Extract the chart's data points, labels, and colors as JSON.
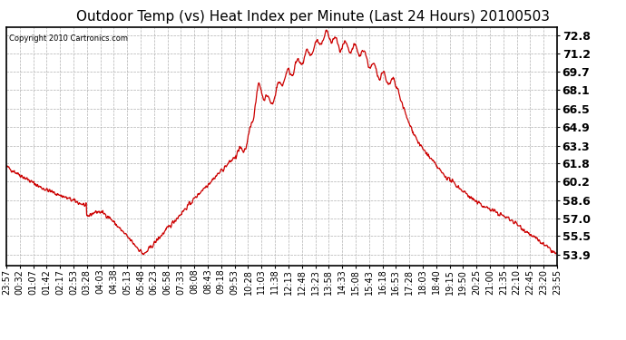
{
  "title": "Outdoor Temp (vs) Heat Index per Minute (Last 24 Hours) 20100503",
  "copyright": "Copyright 2010 Cartronics.com",
  "line_color": "#cc0000",
  "bg_color": "#ffffff",
  "grid_color": "#b0b0b0",
  "yticks": [
    53.9,
    55.5,
    57.0,
    58.6,
    60.2,
    61.8,
    63.3,
    64.9,
    66.5,
    68.1,
    69.7,
    71.2,
    72.8
  ],
  "ymin": 53.0,
  "ymax": 73.5,
  "x_labels": [
    "23:57",
    "00:32",
    "01:07",
    "01:42",
    "02:17",
    "02:53",
    "03:28",
    "04:03",
    "04:38",
    "05:13",
    "05:48",
    "06:23",
    "06:58",
    "07:33",
    "08:08",
    "08:43",
    "09:18",
    "09:53",
    "10:28",
    "11:03",
    "11:38",
    "12:13",
    "12:48",
    "13:23",
    "13:58",
    "14:33",
    "15:08",
    "15:43",
    "16:18",
    "16:53",
    "17:28",
    "18:03",
    "18:40",
    "19:15",
    "19:50",
    "20:25",
    "21:00",
    "21:35",
    "22:10",
    "22:45",
    "23:20",
    "23:55"
  ],
  "title_fontsize": 11,
  "copyright_fontsize": 6,
  "tick_fontsize": 7,
  "ytick_fontsize": 9
}
